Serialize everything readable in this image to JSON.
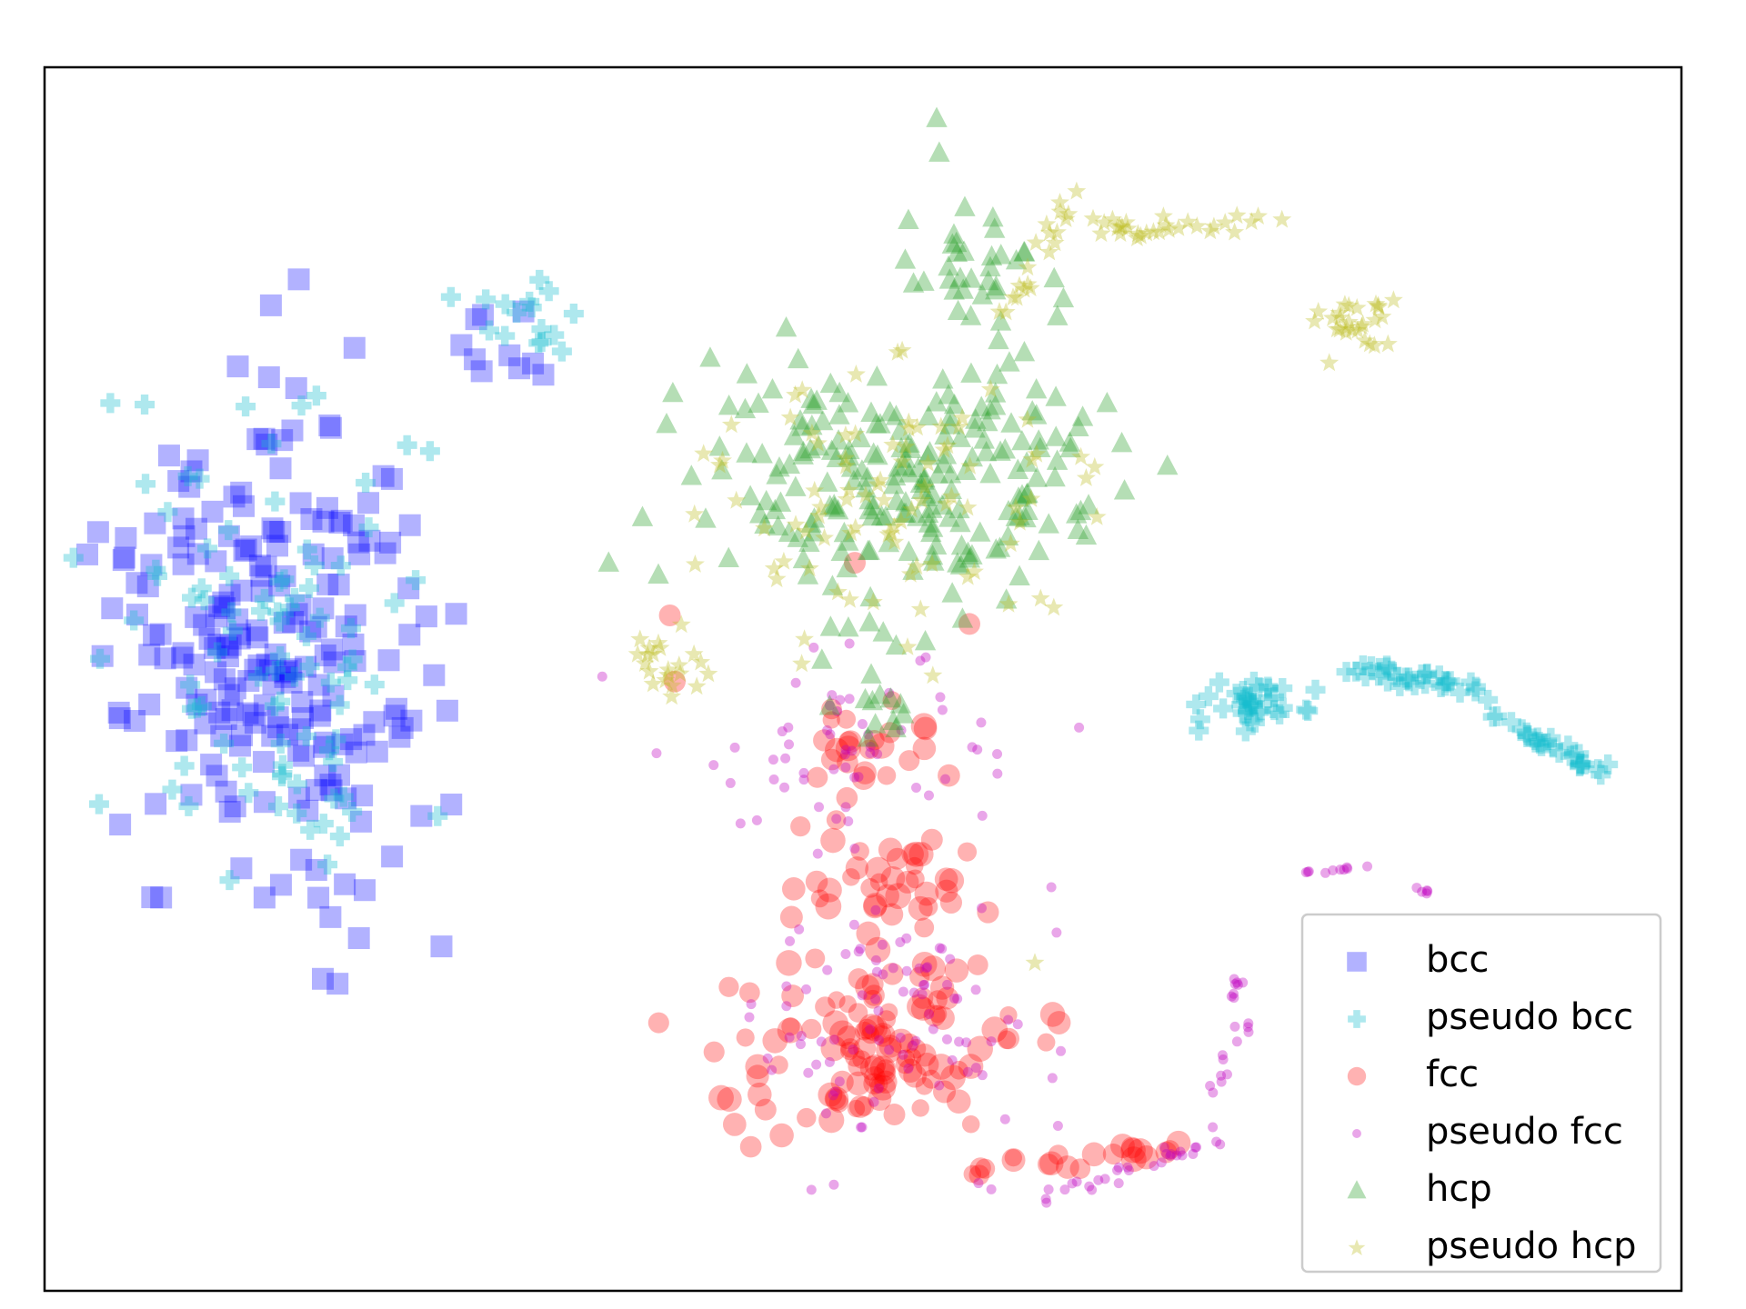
{
  "chart_data": {
    "type": "scatter",
    "title": "",
    "xlabel": "",
    "ylabel": "",
    "xlim": [
      0,
      100
    ],
    "ylim": [
      0,
      100
    ],
    "grid": false,
    "axis_ticks": false,
    "legend": {
      "placement": "lower-right"
    },
    "series": [
      {
        "name": "bcc",
        "marker": "square",
        "color": "#0000ff",
        "opacity": 0.3,
        "clusters": [
          {
            "cx": 13.8,
            "cy": 53.0,
            "rx": 9.0,
            "ry": 19.0,
            "n": 220,
            "seed": 11
          },
          {
            "cx": 27.5,
            "cy": 78.0,
            "rx": 2.5,
            "ry": 4.2,
            "n": 10,
            "seed": 12
          }
        ],
        "points": [
          [
            4.6,
            46.8
          ],
          [
            17.0,
            25.5
          ],
          [
            17.9,
            25.1
          ],
          [
            16.6,
            34.4
          ]
        ]
      },
      {
        "name": "pseudo bcc",
        "marker": "plus",
        "color": "#17becf",
        "opacity": 0.35,
        "clusters": [
          {
            "cx": 13.8,
            "cy": 53.0,
            "rx": 9.8,
            "ry": 20.5,
            "n": 90,
            "seed": 21
          },
          {
            "cx": 29.5,
            "cy": 80.0,
            "rx": 3.0,
            "ry": 3.5,
            "n": 16,
            "seed": 22
          },
          {
            "cx": 73.5,
            "cy": 47.8,
            "rx": 3.6,
            "ry": 1.8,
            "n": 38,
            "seed": 23
          }
        ],
        "lines": [
          {
            "from": [
              80.0,
              50.8
            ],
            "to": [
              88.5,
              49.0
            ],
            "n": 32,
            "jitter": 0.9,
            "seed": 24
          },
          {
            "from": [
              88.5,
              47.0
            ],
            "to": [
              95.5,
              42.0
            ],
            "n": 28,
            "jitter": 0.7,
            "seed": 25
          }
        ]
      },
      {
        "name": "fcc",
        "marker": "circle",
        "color": "#ff0000",
        "opacity": 0.3,
        "clusters": [
          {
            "cx": 50.5,
            "cy": 44.0,
            "rx": 5.0,
            "ry": 4.5,
            "n": 25,
            "seed": 31
          },
          {
            "cx": 52.0,
            "cy": 33.0,
            "rx": 5.5,
            "ry": 5.0,
            "n": 40,
            "seed": 32
          },
          {
            "cx": 51.0,
            "cy": 20.5,
            "rx": 9.0,
            "ry": 7.5,
            "n": 120,
            "seed": 33
          }
        ],
        "lines": [
          {
            "from": [
              56.0,
              9.5
            ],
            "to": [
              69.0,
              11.5
            ],
            "n": 22,
            "jitter": 1.2,
            "seed": 34
          }
        ],
        "points": [
          [
            38.2,
            55.2
          ],
          [
            38.5,
            49.8
          ],
          [
            49.5,
            59.5
          ],
          [
            56.5,
            54.5
          ]
        ]
      },
      {
        "name": "pseudo fcc",
        "marker": "dot",
        "color": "#bf00bf",
        "opacity": 0.35,
        "clusters": [
          {
            "cx": 50.0,
            "cy": 43.0,
            "rx": 9.5,
            "ry": 7.5,
            "n": 60,
            "seed": 41
          },
          {
            "cx": 52.0,
            "cy": 22.0,
            "rx": 9.5,
            "ry": 12.0,
            "n": 90,
            "seed": 42
          }
        ],
        "lines": [
          {
            "from": [
              60.0,
              7.0
            ],
            "to": [
              72.0,
              12.5
            ],
            "n": 30,
            "jitter": 1.0,
            "seed": 43
          },
          {
            "from": [
              71.0,
              15.0
            ],
            "to": [
              73.5,
              22.5
            ],
            "n": 12,
            "jitter": 0.7,
            "seed": 44
          },
          {
            "from": [
              72.6,
              24.0
            ],
            "to": [
              73.8,
              28.5
            ],
            "n": 8,
            "jitter": 0.4,
            "seed": 45
          },
          {
            "from": [
              77.0,
              34.2
            ],
            "to": [
              80.8,
              34.7
            ],
            "n": 10,
            "jitter": 0.3,
            "seed": 46
          },
          {
            "from": [
              83.5,
              33.2
            ],
            "to": [
              84.8,
              32.4
            ],
            "n": 5,
            "jitter": 0.2,
            "seed": 47
          }
        ]
      },
      {
        "name": "hcp",
        "marker": "triangle",
        "color": "#2ca02c",
        "opacity": 0.35,
        "clusters": [
          {
            "cx": 52.0,
            "cy": 66.0,
            "rx": 13.0,
            "ry": 9.5,
            "n": 220,
            "seed": 51
          },
          {
            "cx": 56.5,
            "cy": 83.0,
            "rx": 3.8,
            "ry": 6.0,
            "n": 35,
            "seed": 52
          },
          {
            "cx": 49.5,
            "cy": 47.5,
            "rx": 5.0,
            "ry": 4.5,
            "n": 14,
            "seed": 53
          }
        ],
        "points": [
          [
            54.5,
            95.8
          ],
          [
            38.0,
            70.8
          ],
          [
            37.5,
            58.5
          ]
        ]
      },
      {
        "name": "pseudo hcp",
        "marker": "star",
        "color": "#bcbd22",
        "opacity": 0.35,
        "clusters": [
          {
            "cx": 51.0,
            "cy": 65.0,
            "rx": 14.0,
            "ry": 11.0,
            "n": 90,
            "seed": 61
          },
          {
            "cx": 38.0,
            "cy": 51.0,
            "rx": 2.5,
            "ry": 3.0,
            "n": 22,
            "seed": 62
          },
          {
            "cx": 80.0,
            "cy": 79.0,
            "rx": 2.0,
            "ry": 2.0,
            "n": 28,
            "seed": 63
          }
        ],
        "lines": [
          {
            "from": [
              58.5,
              80.0
            ],
            "to": [
              63.0,
              90.0
            ],
            "n": 20,
            "jitter": 1.0,
            "seed": 64
          },
          {
            "from": [
              64.0,
              86.5
            ],
            "to": [
              74.5,
              87.5
            ],
            "n": 30,
            "jitter": 1.3,
            "seed": 65
          }
        ],
        "points": [
          [
            60.5,
            26.8
          ]
        ]
      }
    ]
  }
}
